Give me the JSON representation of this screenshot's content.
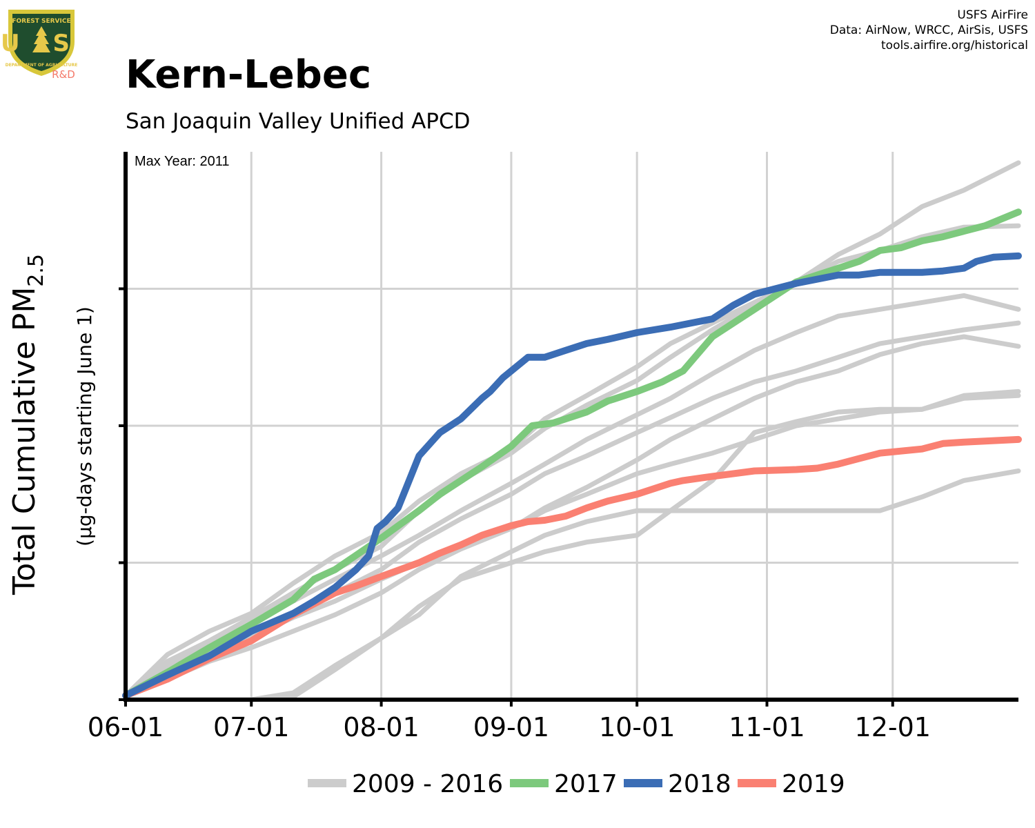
{
  "header": {
    "title": "Kern-Lebec",
    "subtitle": "San Joaquin Valley Unified APCD"
  },
  "credits": {
    "line1": "USFS AirFire",
    "line2": "Data: AirNow, WRCC, AirSis, USFS",
    "line3": "tools.airfire.org/historical"
  },
  "logo": {
    "top_text": "FOREST SERVICE",
    "letters": "U S",
    "bottom_text": "DEPARTMENT OF AGRICULTURE",
    "rd": "R&D",
    "colors": {
      "shield_outer": "#d8c73a",
      "shield_inner": "#1f4d2e",
      "gold": "#e6c84a",
      "rd": "#f47a6a"
    }
  },
  "annotation": {
    "max_year": "Max Year: 2011"
  },
  "chart_data": {
    "type": "line",
    "title": "Kern-Lebec",
    "subtitle": "San Joaquin Valley Unified APCD",
    "ylabel": "Total Cumulative PM",
    "ylabel_sub": "2.5",
    "ylabel2": "(µg-days starting June 1)",
    "x_ticks": [
      "06-01",
      "07-01",
      "08-01",
      "09-01",
      "10-01",
      "11-01",
      "12-01"
    ],
    "x_tick_days": [
      0,
      30,
      61,
      92,
      122,
      153,
      183
    ],
    "xlim": [
      0,
      213
    ],
    "ylim": [
      0,
      4
    ],
    "y_gridlines": [
      1,
      2,
      3
    ],
    "y_tick_labels_shown": false,
    "grid": true,
    "legend_position": "bottom",
    "legend": [
      "2009 - 2016",
      "2017",
      "2018",
      "2019"
    ],
    "colors": {
      "history": "#cccccc",
      "2017": "#7dc97d",
      "2018": "#3b6db5",
      "2019": "#fa8072"
    },
    "series": [
      {
        "name": "2009 - 2016",
        "group": "history",
        "x": [
          0,
          10,
          20,
          30,
          40,
          50,
          61,
          70,
          80,
          92,
          100,
          110,
          122,
          130,
          140,
          150,
          160,
          170,
          180,
          190,
          200,
          213
        ],
        "y": [
          0.03,
          0.33,
          0.5,
          0.63,
          0.85,
          1.05,
          1.22,
          1.45,
          1.65,
          1.83,
          2.05,
          2.22,
          2.43,
          2.6,
          2.75,
          2.9,
          3.05,
          3.25,
          3.4,
          3.6,
          3.72,
          3.92
        ]
      },
      {
        "name": "2009 - 2016",
        "group": "history",
        "x": [
          0,
          10,
          20,
          30,
          40,
          50,
          61,
          70,
          80,
          92,
          100,
          110,
          122,
          130,
          140,
          150,
          160,
          170,
          180,
          190,
          200,
          213
        ],
        "y": [
          0.03,
          0.28,
          0.43,
          0.6,
          0.78,
          0.95,
          1.12,
          1.38,
          1.6,
          1.8,
          1.98,
          2.15,
          2.33,
          2.5,
          2.7,
          2.88,
          3.05,
          3.2,
          3.28,
          3.38,
          3.45,
          3.46
        ]
      },
      {
        "name": "2009 - 2016",
        "group": "history",
        "x": [
          0,
          10,
          20,
          30,
          40,
          50,
          61,
          70,
          80,
          92,
          100,
          110,
          122,
          130,
          140,
          150,
          160,
          170,
          180,
          190,
          200,
          213
        ],
        "y": [
          0.03,
          0.25,
          0.42,
          0.55,
          0.72,
          0.88,
          1.05,
          1.2,
          1.38,
          1.58,
          1.72,
          1.9,
          2.08,
          2.2,
          2.38,
          2.55,
          2.68,
          2.8,
          2.85,
          2.9,
          2.95,
          2.85
        ]
      },
      {
        "name": "2009 - 2016",
        "group": "history",
        "x": [
          0,
          10,
          20,
          30,
          40,
          50,
          61,
          70,
          80,
          92,
          100,
          110,
          122,
          130,
          140,
          150,
          160,
          170,
          180,
          190,
          200,
          213
        ],
        "y": [
          0.03,
          0.2,
          0.33,
          0.47,
          0.62,
          0.78,
          0.95,
          1.15,
          1.32,
          1.5,
          1.65,
          1.78,
          1.95,
          2.06,
          2.2,
          2.32,
          2.4,
          2.5,
          2.6,
          2.65,
          2.7,
          2.75
        ]
      },
      {
        "name": "2009 - 2016",
        "group": "history",
        "x": [
          0,
          10,
          20,
          30,
          40,
          50,
          61,
          70,
          80,
          92,
          100,
          110,
          122,
          130,
          140,
          150,
          160,
          170,
          180,
          190,
          200,
          213
        ],
        "y": [
          0.03,
          0.2,
          0.33,
          0.46,
          0.6,
          0.72,
          0.88,
          1.0,
          1.12,
          1.25,
          1.4,
          1.55,
          1.75,
          1.9,
          2.05,
          2.2,
          2.32,
          2.4,
          2.52,
          2.6,
          2.65,
          2.58
        ]
      },
      {
        "name": "2009 - 2016",
        "group": "history",
        "x": [
          0,
          10,
          20,
          30,
          40,
          50,
          61,
          70,
          80,
          92,
          100,
          110,
          122,
          130,
          140,
          150,
          160,
          170,
          180,
          190,
          200,
          213
        ],
        "y": [
          0.03,
          0.15,
          0.28,
          0.38,
          0.5,
          0.62,
          0.78,
          0.95,
          1.1,
          1.25,
          1.38,
          1.5,
          1.65,
          1.72,
          1.8,
          1.9,
          2.0,
          2.05,
          2.1,
          2.12,
          2.22,
          2.25
        ]
      },
      {
        "name": "2009 - 2016",
        "group": "history",
        "x": [
          0,
          10,
          20,
          30,
          40,
          50,
          61,
          70,
          80,
          92,
          100,
          110,
          122,
          130,
          140,
          150,
          160,
          170,
          180,
          190,
          200,
          213
        ],
        "y": [
          0,
          0,
          0,
          0,
          0.05,
          0.25,
          0.45,
          0.68,
          0.88,
          1.0,
          1.08,
          1.15,
          1.2,
          1.38,
          1.6,
          1.95,
          2.03,
          2.1,
          2.12,
          2.12,
          2.2,
          2.22
        ]
      },
      {
        "name": "2009 - 2016",
        "group": "history",
        "x": [
          0,
          10,
          20,
          30,
          40,
          50,
          61,
          70,
          80,
          92,
          100,
          110,
          122,
          130,
          140,
          150,
          160,
          170,
          180,
          190,
          200,
          213
        ],
        "y": [
          0,
          0,
          0,
          0,
          0.02,
          0.22,
          0.45,
          0.62,
          0.9,
          1.08,
          1.2,
          1.3,
          1.38,
          1.38,
          1.38,
          1.38,
          1.38,
          1.38,
          1.38,
          1.48,
          1.6,
          1.67
        ]
      },
      {
        "name": "2017",
        "x": [
          0,
          10,
          20,
          30,
          40,
          45,
          50,
          61,
          70,
          75,
          80,
          85,
          92,
          97,
          102,
          110,
          115,
          122,
          128,
          133,
          140,
          150,
          155,
          160,
          165,
          170,
          175,
          180,
          185,
          190,
          195,
          200,
          205,
          213
        ],
        "y": [
          0.03,
          0.2,
          0.38,
          0.55,
          0.73,
          0.88,
          0.95,
          1.18,
          1.38,
          1.5,
          1.6,
          1.7,
          1.85,
          2.0,
          2.02,
          2.1,
          2.18,
          2.25,
          2.32,
          2.4,
          2.65,
          2.85,
          2.95,
          3.05,
          3.1,
          3.15,
          3.2,
          3.28,
          3.3,
          3.35,
          3.38,
          3.42,
          3.46,
          3.56
        ]
      },
      {
        "name": "2018",
        "x": [
          0,
          10,
          20,
          30,
          40,
          45,
          50,
          55,
          58,
          60,
          62,
          65,
          67,
          70,
          75,
          80,
          85,
          87,
          90,
          92,
          96,
          100,
          105,
          110,
          115,
          122,
          130,
          135,
          140,
          145,
          150,
          155,
          160,
          165,
          170,
          175,
          180,
          185,
          190,
          195,
          200,
          203,
          207,
          213
        ],
        "y": [
          0.03,
          0.18,
          0.32,
          0.5,
          0.63,
          0.72,
          0.82,
          0.95,
          1.05,
          1.25,
          1.3,
          1.4,
          1.55,
          1.78,
          1.95,
          2.05,
          2.2,
          2.25,
          2.35,
          2.4,
          2.5,
          2.5,
          2.55,
          2.6,
          2.63,
          2.68,
          2.72,
          2.75,
          2.78,
          2.88,
          2.96,
          3.0,
          3.04,
          3.07,
          3.1,
          3.1,
          3.12,
          3.12,
          3.12,
          3.13,
          3.15,
          3.2,
          3.23,
          3.24
        ]
      },
      {
        "name": "2019",
        "x": [
          0,
          10,
          20,
          30,
          40,
          50,
          55,
          61,
          70,
          75,
          80,
          85,
          92,
          96,
          100,
          105,
          110,
          115,
          122,
          130,
          133,
          140,
          150,
          160,
          165,
          170,
          175,
          180,
          190,
          195,
          200,
          213
        ],
        "y": [
          0.03,
          0.15,
          0.3,
          0.43,
          0.62,
          0.78,
          0.83,
          0.9,
          1.0,
          1.07,
          1.13,
          1.2,
          1.27,
          1.3,
          1.31,
          1.34,
          1.4,
          1.45,
          1.5,
          1.58,
          1.6,
          1.63,
          1.67,
          1.68,
          1.69,
          1.72,
          1.76,
          1.8,
          1.83,
          1.87,
          1.88,
          1.9
        ]
      }
    ]
  }
}
